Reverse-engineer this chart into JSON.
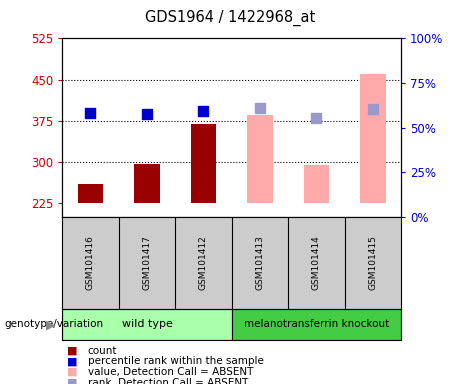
{
  "title": "GDS1964 / 1422968_at",
  "samples": [
    "GSM101416",
    "GSM101417",
    "GSM101412",
    "GSM101413",
    "GSM101414",
    "GSM101415"
  ],
  "group_colors": {
    "wild type": "#99ff99",
    "melanotransferrin knockout": "#44cc44"
  },
  "ylim_left": [
    200,
    525
  ],
  "ylim_right": [
    0,
    100
  ],
  "yticks_left": [
    225,
    300,
    375,
    450,
    525
  ],
  "yticks_right": [
    0,
    25,
    50,
    75,
    100
  ],
  "bar_bottom": 225,
  "count_values": [
    260,
    296,
    370,
    null,
    295,
    null
  ],
  "count_color": "#990000",
  "absent_value_values": [
    null,
    null,
    null,
    385,
    295,
    460
  ],
  "absent_value_color": "#ffaaaa",
  "percentile_rank_values": [
    55,
    54,
    56,
    null,
    null,
    null
  ],
  "percentile_rank_color": "#0000cc",
  "absent_rank_values": [
    null,
    null,
    null,
    58,
    52,
    57
  ],
  "absent_rank_color": "#9999cc",
  "bar_width": 0.45,
  "dot_size": 50,
  "plot_bg_color": "#ffffff",
  "tick_label_color_left": "#cc0000",
  "tick_label_color_right": "#0000cc",
  "legend_labels": [
    "count",
    "percentile rank within the sample",
    "value, Detection Call = ABSENT",
    "rank, Detection Call = ABSENT"
  ],
  "legend_colors": [
    "#990000",
    "#0000cc",
    "#ffaaaa",
    "#9999cc"
  ],
  "gridline_values": [
    300,
    375,
    450
  ],
  "wt_color": "#aaffaa",
  "mko_color": "#44cc44"
}
